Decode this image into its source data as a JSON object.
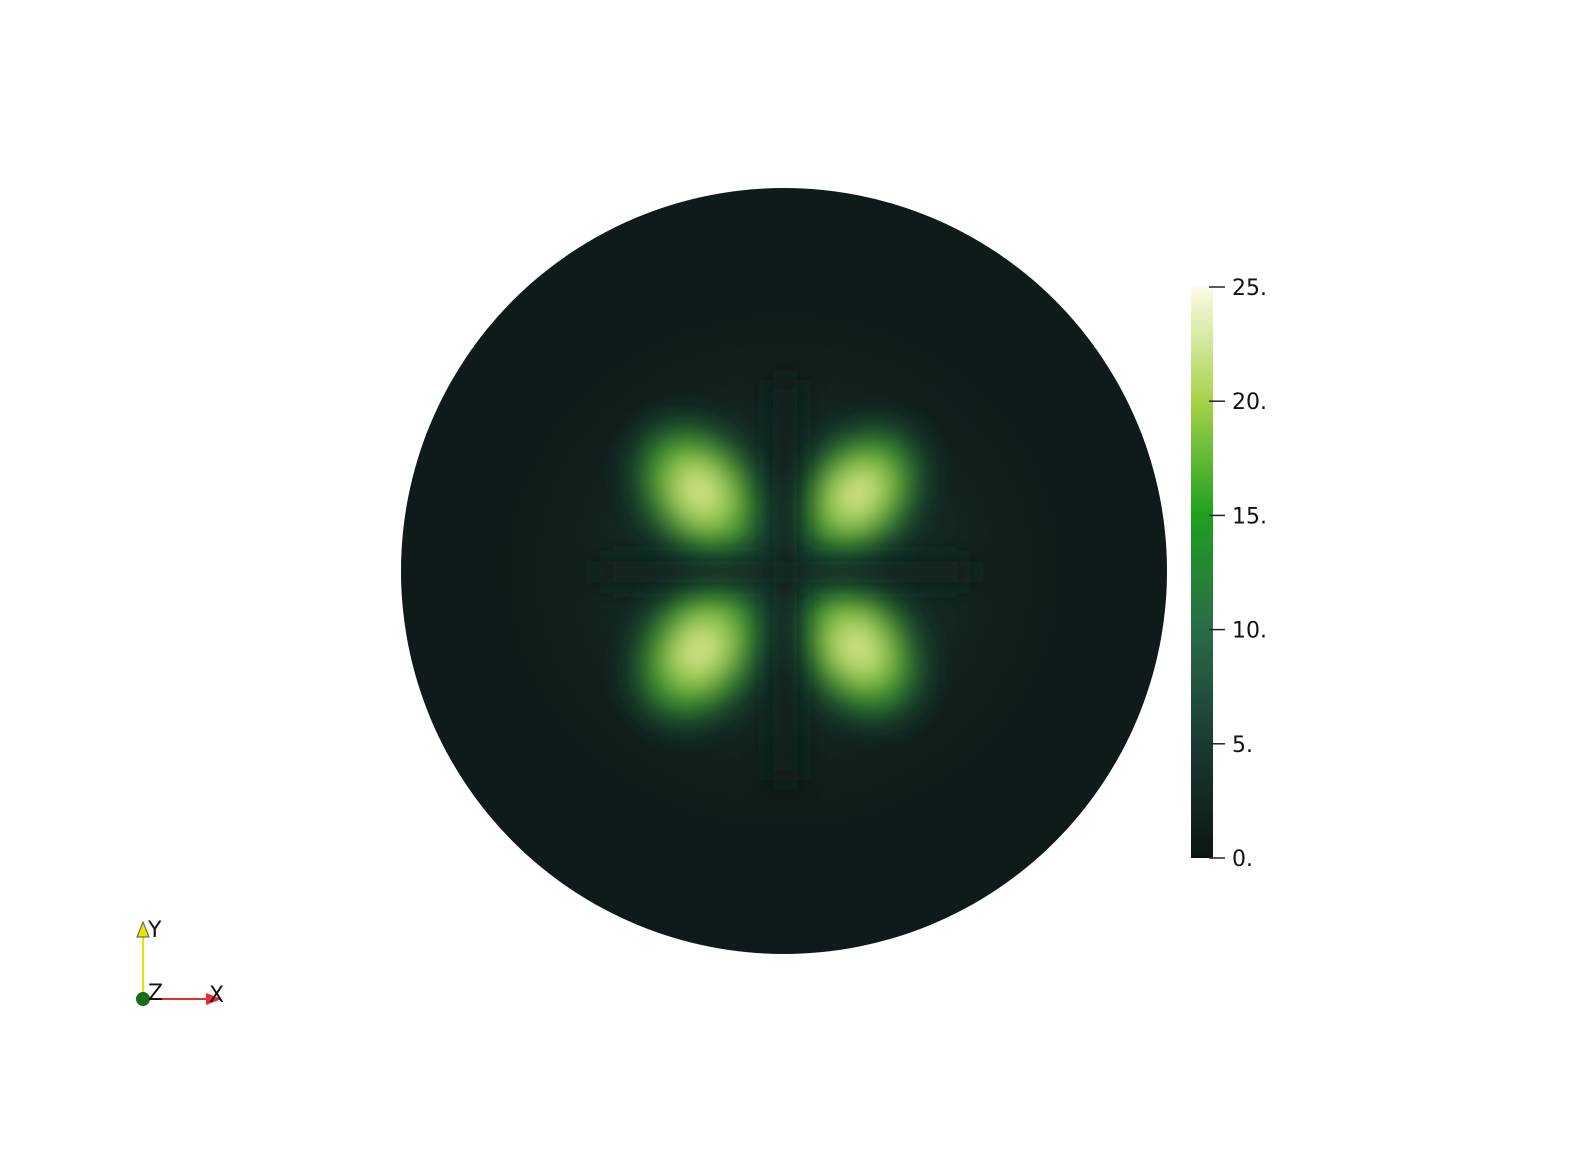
{
  "scalar_bar": {
    "range": [
      0,
      25
    ],
    "ticks": [
      {
        "value": 25,
        "label": "25."
      },
      {
        "value": 20,
        "label": "20."
      },
      {
        "value": 15,
        "label": "15."
      },
      {
        "value": 10,
        "label": "10."
      },
      {
        "value": 5,
        "label": "5."
      },
      {
        "value": 0,
        "label": "0."
      }
    ],
    "colormap": [
      "#0b1614",
      "#1a3a33",
      "#2a6b48",
      "#1fa020",
      "#a6d24a",
      "#fdfbe6"
    ]
  },
  "axes_triad": {
    "x_label": "X",
    "y_label": "Y",
    "z_label": "Z",
    "x_color": "#e03030",
    "y_color": "#e6e600",
    "z_color": "#1a6b1a"
  },
  "field": {
    "background_color": "#0f1b1a",
    "lobes": [
      {
        "name": "upper-left",
        "peak": 19
      },
      {
        "name": "upper-right",
        "peak": 22
      },
      {
        "name": "lower-left",
        "peak": 22
      },
      {
        "name": "lower-right",
        "peak": 21
      }
    ]
  }
}
